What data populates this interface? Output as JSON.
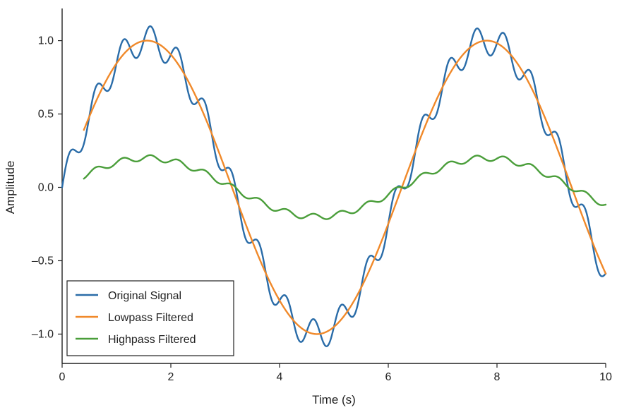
{
  "chart_data": {
    "type": "line",
    "title": "",
    "xlabel": "Time (s)",
    "ylabel": "Amplitude",
    "xlim": [
      0,
      10
    ],
    "ylim": [
      -1.2,
      1.2
    ],
    "xticks": [
      0,
      2,
      4,
      6,
      8,
      10
    ],
    "xtick_labels": [
      "0",
      "2",
      "4",
      "6",
      "8",
      "10"
    ],
    "yticks": [
      1.0,
      0.5,
      0.0,
      -0.5,
      -1.0
    ],
    "ytick_labels": [
      "1.0",
      "0.5",
      "0.0",
      "–0.5",
      "–1.0"
    ],
    "grid": false,
    "legend_position": "lower-left",
    "series": [
      {
        "name": "Original Signal",
        "color": "#2a6ca8",
        "description_model": {
          "components": [
            {
              "amplitude": 1.0,
              "frequency_hz": 0.16
            },
            {
              "amplitude": 0.1,
              "frequency_hz": 2.0
            }
          ],
          "x_range": [
            0,
            10
          ]
        },
        "x": [
          0,
          1.6,
          4.8,
          8.0,
          10.0
        ],
        "y": [
          0.05,
          1.0,
          -1.0,
          1.0,
          -0.63
        ]
      },
      {
        "name": "Lowpass Filtered",
        "color": "#f0892a",
        "description_model": {
          "components": [
            {
              "amplitude": 1.0,
              "frequency_hz": 0.16
            }
          ],
          "x_range": [
            0.4,
            10
          ]
        },
        "x": [
          0.4,
          1.8,
          3.5,
          4.9,
          6.5,
          8.1,
          10.0
        ],
        "y": [
          0.19,
          1.0,
          -0.25,
          -0.99,
          0.18,
          1.0,
          -0.35
        ]
      },
      {
        "name": "Highpass Filtered",
        "color": "#4a9e3a",
        "description_model": {
          "components": [
            {
              "amplitude": 0.2,
              "frequency_hz": 0.16
            },
            {
              "amplitude": 0.02,
              "frequency_hz": 2.0
            }
          ],
          "x_range": [
            0.4,
            10
          ]
        },
        "x": [
          0.4,
          3.2,
          6.5,
          9.6,
          10.0
        ],
        "y": [
          0.18,
          -0.2,
          0.2,
          -0.2,
          -0.18
        ]
      }
    ]
  }
}
